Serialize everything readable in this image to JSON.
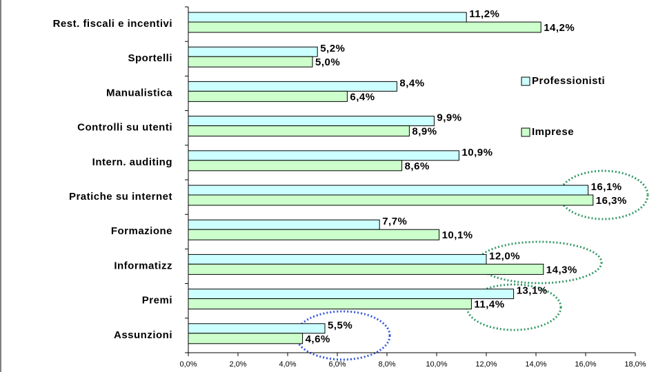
{
  "chart_data": {
    "type": "hbar",
    "categories": [
      "Rest. fiscali e incentivi",
      "Sportelli",
      "Manualistica",
      "Controlli su utenti",
      "Intern. auditing",
      "Pratiche su internet",
      "Formazione",
      "Informatizz",
      "Premi",
      "Assunzioni"
    ],
    "series": [
      {
        "name": "Professionisti",
        "color": "#ccffff",
        "values": [
          11.2,
          5.2,
          8.4,
          9.9,
          10.9,
          16.1,
          7.7,
          12.0,
          13.1,
          5.5
        ],
        "value_labels": [
          "11,2%",
          "5,2%",
          "8,4%",
          "9,9%",
          "10,9%",
          "16,1%",
          "7,7%",
          "12,0%",
          "13,1%",
          "5,5%"
        ]
      },
      {
        "name": "Imprese",
        "color": "#ccffcc",
        "values": [
          14.2,
          5.0,
          6.4,
          8.9,
          8.6,
          16.3,
          10.1,
          14.3,
          11.4,
          4.6
        ],
        "value_labels": [
          "14,2%",
          "5,0%",
          "6,4%",
          "8,9%",
          "8,6%",
          "16,3%",
          "10,1%",
          "14,3%",
          "11,4%",
          "4,6%"
        ]
      }
    ],
    "xlim": [
      0,
      18
    ],
    "xticks": [
      {
        "value": 0,
        "label": "0,0%"
      },
      {
        "value": 2,
        "label": "2,0%"
      },
      {
        "value": 4,
        "label": "4,0%"
      },
      {
        "value": 6,
        "label": "6,0%"
      },
      {
        "value": 8,
        "label": "8,0%"
      },
      {
        "value": 10,
        "label": "10,0%"
      },
      {
        "value": 12,
        "label": "12,0%"
      },
      {
        "value": 14,
        "label": "14,0%"
      },
      {
        "value": 16,
        "label": "16,0%"
      },
      {
        "value": 18,
        "label": "18,0%"
      }
    ],
    "legend": "right",
    "grid": false
  }
}
